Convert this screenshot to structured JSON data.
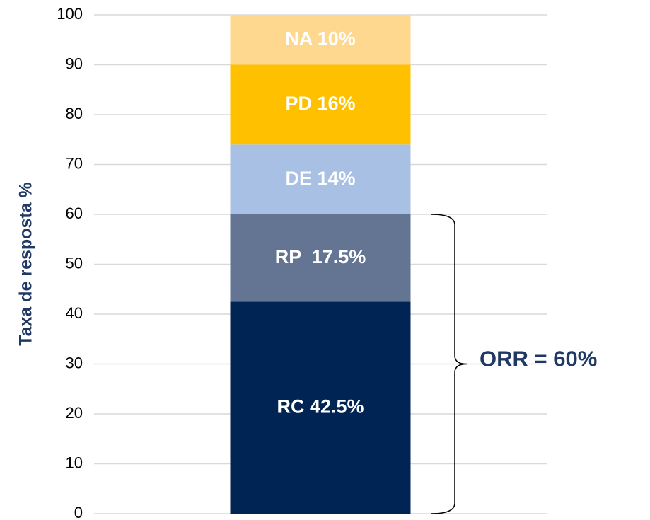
{
  "chart_data": {
    "type": "stacked_bar",
    "ylabel": "Taxa de resposta %",
    "categories": [
      null
    ],
    "series": [
      {
        "name": "RC",
        "color": "#002554",
        "values": [
          42.5
        ],
        "value_labels": [
          "RC 42.5%"
        ]
      },
      {
        "name": "RP",
        "color": "#637593",
        "values": [
          17.5
        ],
        "value_labels": [
          "RP  17.5%"
        ]
      },
      {
        "name": "DE",
        "color": "#a7c0e3",
        "values": [
          14
        ],
        "value_labels": [
          "DE 14%"
        ]
      },
      {
        "name": "PD",
        "color": "#ffc000",
        "values": [
          16
        ],
        "value_labels": [
          "PD 16%"
        ]
      },
      {
        "name": "NA",
        "color": "#fed88f",
        "values": [
          10
        ],
        "value_labels": [
          "NA 10%"
        ]
      }
    ],
    "ylim": [
      0,
      100
    ],
    "yticks": [
      0,
      10,
      20,
      30,
      40,
      50,
      60,
      70,
      80,
      90,
      100
    ],
    "grid": true,
    "annotation": {
      "text": "ORR = 60%",
      "from": 0,
      "to": 60,
      "color": "#1f3864"
    }
  }
}
